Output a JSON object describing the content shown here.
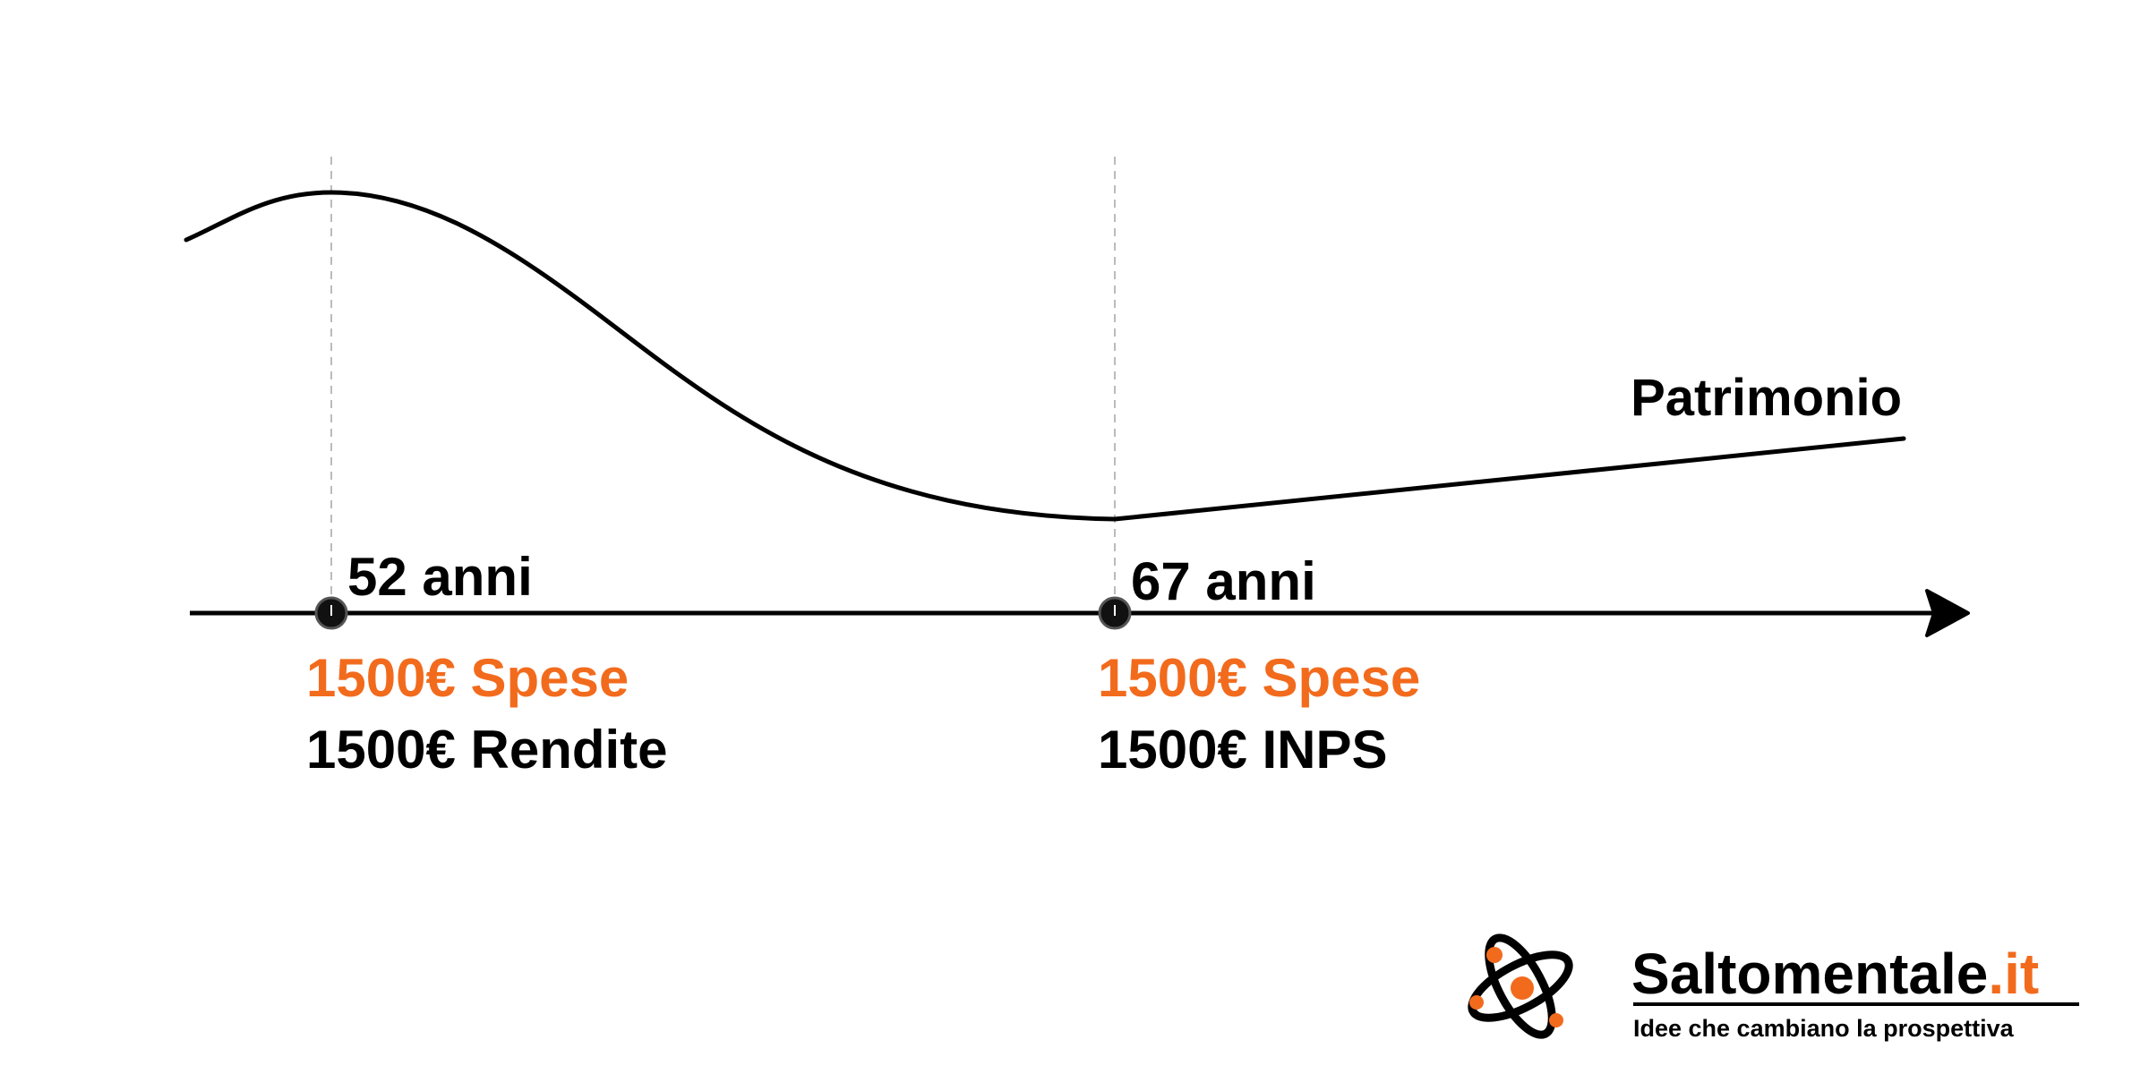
{
  "curve": {
    "label": "Patrimonio"
  },
  "milestones": [
    {
      "age_label": "52 anni",
      "expense_label": "1500€ Spese",
      "income_label": "1500€ Rendite"
    },
    {
      "age_label": "67 anni",
      "expense_label": "1500€ Spese",
      "income_label": "1500€ INPS"
    }
  ],
  "brand": {
    "name": "Saltomentale",
    "tld": ".it",
    "tagline": "Idee che cambiano la prospettiva"
  },
  "colors": {
    "accent": "#f26b1d",
    "ink": "#000000",
    "guide": "#bbbbbb"
  },
  "icons": {
    "logo": "atom-icon",
    "axis_end": "arrowhead-icon",
    "milestone_marker": "circle-marker-icon"
  }
}
